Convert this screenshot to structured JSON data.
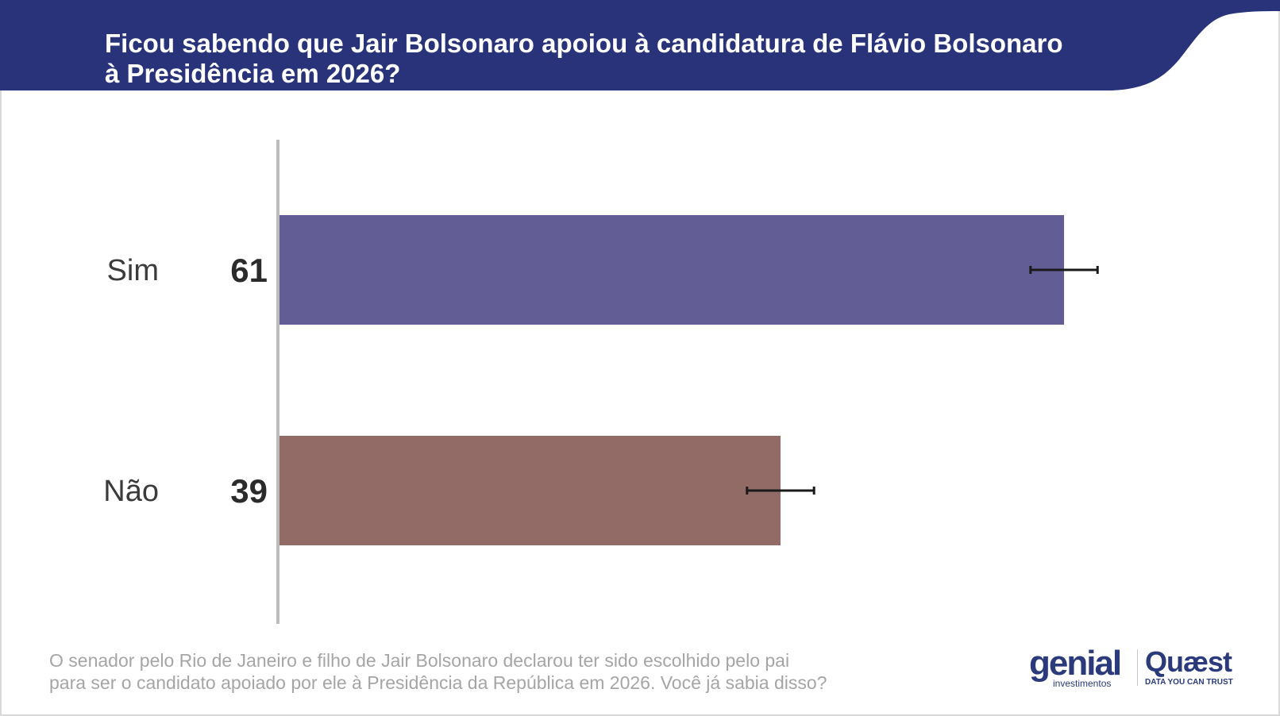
{
  "header": {
    "title_line1": "Ficou sabendo que Jair Bolsonaro apoiou à candidatura de Flávio Bolsonaro",
    "title_line2": "à Presidência em 2026?"
  },
  "footnote": {
    "line1": "O senador pelo Rio de Janeiro e filho de Jair Bolsonaro declarou ter sido escolhido pelo pai",
    "line2": "para ser o candidato apoiado por ele à Presidência da República em 2026. Você já sabia disso?"
  },
  "logos": {
    "genial_word": "genial",
    "genial_sub": "investimentos",
    "quaest_word": "Quæst",
    "quaest_sub": "DATA YOU CAN TRUST"
  },
  "colors": {
    "header": "#29337a",
    "axis": "#bdbdbd",
    "error_bar": "#1a1a1a"
  },
  "chart_data": {
    "type": "bar",
    "orientation": "horizontal",
    "title": "Ficou sabendo que Jair Bolsonaro apoiou à candidatura de Flávio Bolsonaro à Presidência em 2026?",
    "categories": [
      "Sim",
      "Não"
    ],
    "values": [
      61,
      39
    ],
    "value_labels": [
      "61",
      "39"
    ],
    "error_margin": 2.6,
    "colors": [
      "#625e95",
      "#936b66"
    ],
    "xlim": [
      0,
      70
    ],
    "grid": false,
    "legend": "none"
  }
}
